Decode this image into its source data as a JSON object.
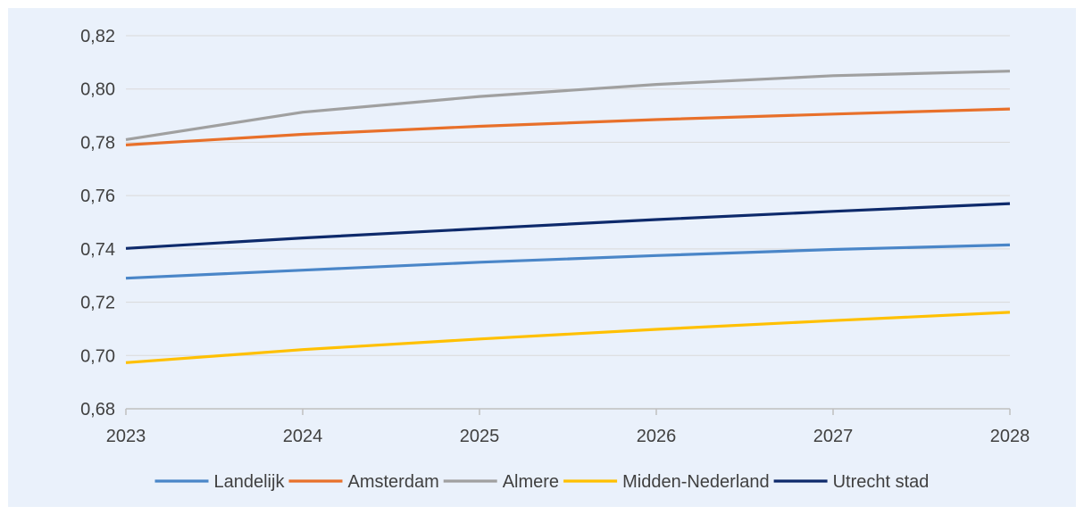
{
  "chart_data": {
    "type": "line",
    "x": [
      "2023",
      "2024",
      "2025",
      "2026",
      "2027",
      "2028"
    ],
    "ylim": [
      0.68,
      0.82
    ],
    "y_ticks": [
      "0,68",
      "0,70",
      "0,72",
      "0,74",
      "0,76",
      "0,78",
      "0,80",
      "0,82"
    ],
    "y_tick_values": [
      0.68,
      0.7,
      0.72,
      0.74,
      0.76,
      0.78,
      0.8,
      0.82
    ],
    "grid": "horizontal",
    "legend_position": "bottom",
    "series": [
      {
        "name": "Landelijk",
        "color": "#4a86c8",
        "values": [
          0.729,
          0.732,
          0.735,
          0.7375,
          0.7398,
          0.7415
        ]
      },
      {
        "name": "Amsterdam",
        "color": "#e8702a",
        "values": [
          0.779,
          0.783,
          0.786,
          0.7885,
          0.7906,
          0.7925
        ]
      },
      {
        "name": "Almere",
        "color": "#a0a0a0",
        "values": [
          0.781,
          0.7913,
          0.7972,
          0.8017,
          0.805,
          0.8067
        ]
      },
      {
        "name": "Midden-Nederland",
        "color": "#ffc000",
        "values": [
          0.6973,
          0.7022,
          0.7062,
          0.7098,
          0.7131,
          0.7162
        ]
      },
      {
        "name": "Utrecht stad",
        "color": "#0e2a6b",
        "values": [
          0.7402,
          0.7441,
          0.7476,
          0.751,
          0.7541,
          0.757
        ]
      }
    ]
  }
}
